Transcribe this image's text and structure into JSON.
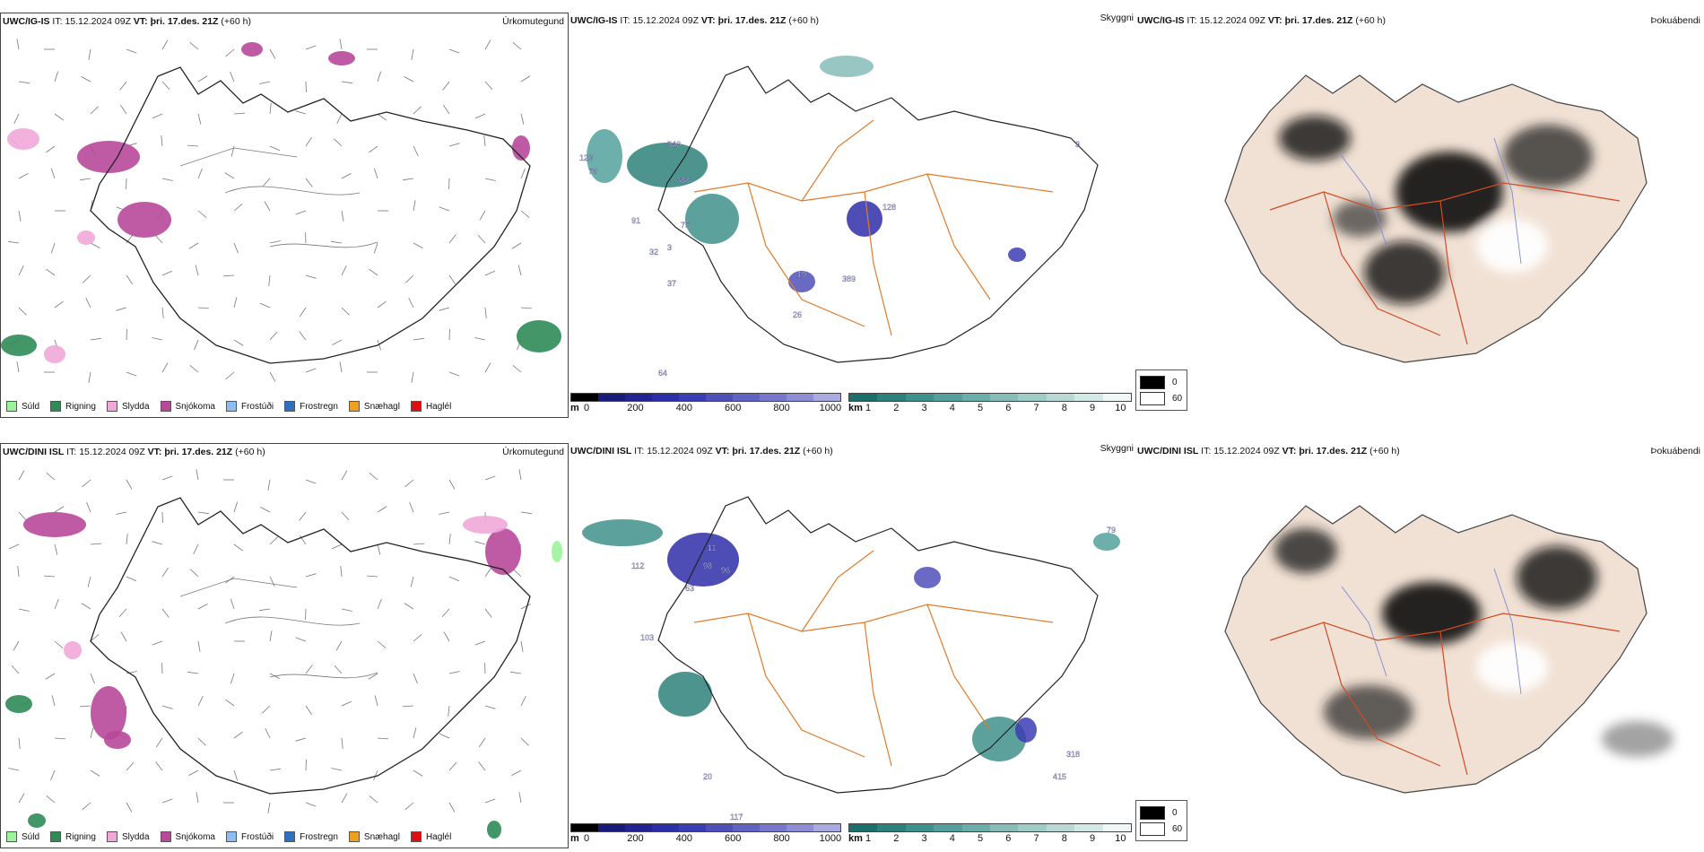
{
  "header_common": {
    "it_label": "IT:",
    "it_value": "15.12.2024 09Z",
    "vt_label": "VT:",
    "vt_value": "þri. 17.des. 21Z",
    "lead": "(+60 h)"
  },
  "rows": [
    {
      "model": "UWC/IG-IS"
    },
    {
      "model": "UWC/DINI ISL"
    }
  ],
  "panel_titles": {
    "precip": "Úrkomutegund",
    "visibility": "Skyggni",
    "fog": "Þokuábendi"
  },
  "precip_legend": [
    {
      "label": "Súld",
      "color": "#9af59a"
    },
    {
      "label": "Rigning",
      "color": "#2e8b57"
    },
    {
      "label": "Slydda",
      "color": "#f1a7d8"
    },
    {
      "label": "Snjókoma",
      "color": "#b8489a"
    },
    {
      "label": "Frostúði",
      "color": "#8cbdf0"
    },
    {
      "label": "Frostregn",
      "color": "#2f6fbf"
    },
    {
      "label": "Snæhagl",
      "color": "#f0a020"
    },
    {
      "label": "Haglél",
      "color": "#e01010"
    }
  ],
  "ceiling_bar": {
    "unit": "m",
    "ticks": [
      "0",
      "200",
      "400",
      "600",
      "800",
      "1000"
    ],
    "colors": [
      "#000000",
      "#1a1a7a",
      "#232394",
      "#2e2ea8",
      "#3c3cb3",
      "#5050bb",
      "#6262c2",
      "#7777cc",
      "#8e8ed6",
      "#aaaae0"
    ]
  },
  "visibility_bar": {
    "unit": "km",
    "ticks": [
      "1",
      "2",
      "3",
      "4",
      "5",
      "6",
      "7",
      "8",
      "9",
      "10"
    ],
    "colors": [
      "#1d6f6a",
      "#2e817b",
      "#3f918b",
      "#54a19b",
      "#6caeaa",
      "#86bdb9",
      "#a0ccc8",
      "#bad9d6",
      "#d4e8e6",
      "#f2f8f8"
    ]
  },
  "fog_legend": [
    {
      "label": "0",
      "color": "#000000"
    },
    {
      "label": "60",
      "color": "#ffffff"
    }
  ],
  "map_labels": {
    "row1": [
      "540",
      "123",
      "76",
      "688",
      "91",
      "75",
      "32",
      "3",
      "37",
      "128",
      "19",
      "389",
      "26",
      "3",
      "64"
    ],
    "row2": [
      "112",
      "98",
      "63",
      "11",
      "96",
      "103",
      "318",
      "415",
      "79",
      "117",
      "20"
    ]
  }
}
